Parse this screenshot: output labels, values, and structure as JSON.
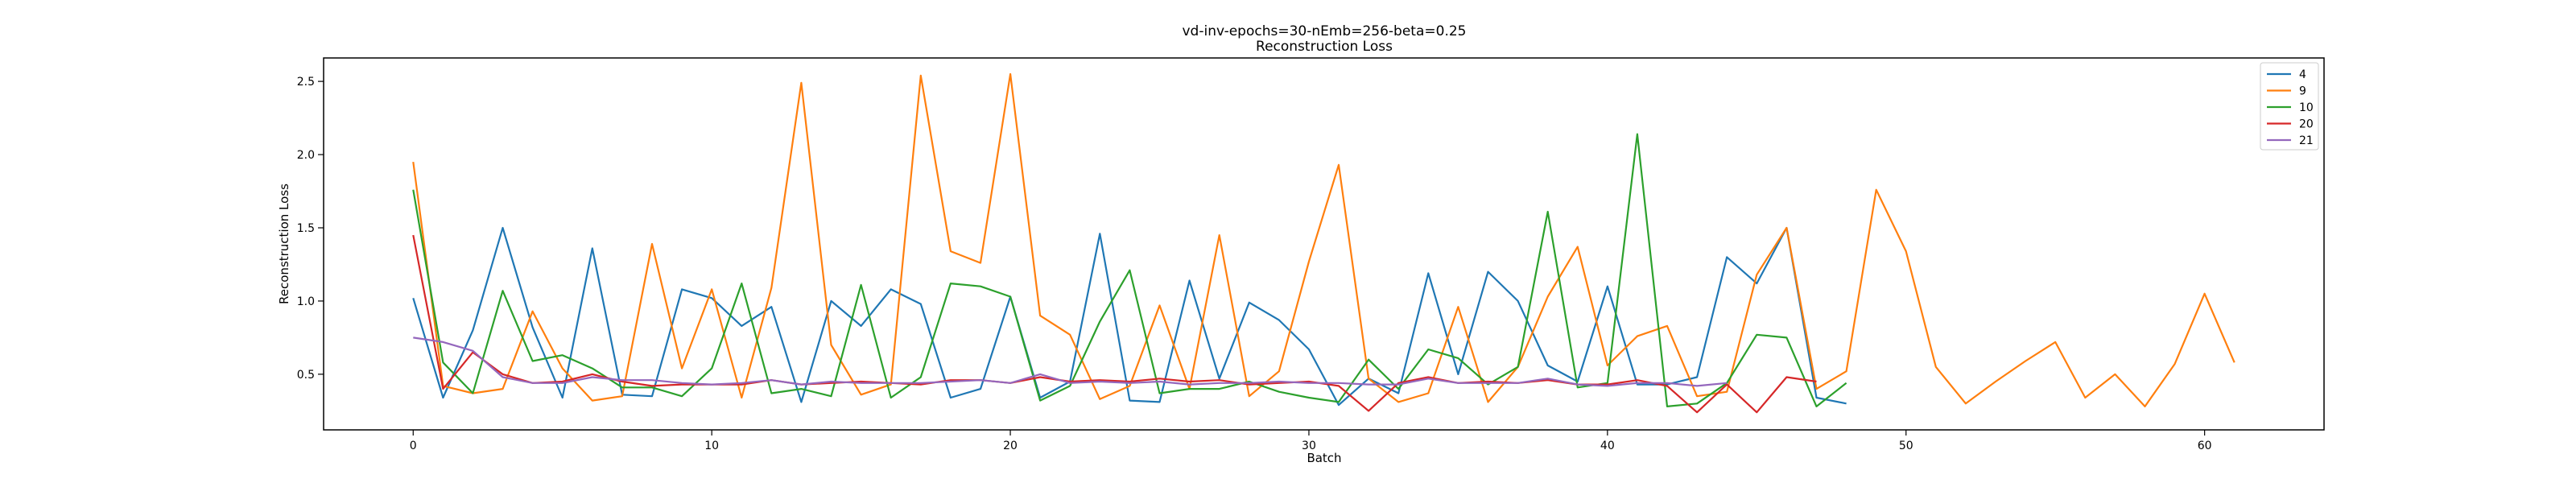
{
  "chart_data": {
    "type": "line",
    "title": "vd-inv-epochs=30-nEmb=256-beta=0.25",
    "subtitle": "Reconstruction Loss",
    "xlabel": "Batch",
    "ylabel": "Reconstruction Loss",
    "xlim": [
      -3,
      64
    ],
    "ylim": [
      0.12,
      2.66
    ],
    "xticks": [
      0,
      10,
      20,
      30,
      40,
      50,
      60
    ],
    "yticks": [
      0.5,
      1.0,
      1.5,
      2.0,
      2.5
    ],
    "ytick_labels": [
      "0.5",
      "1.0",
      "1.5",
      "2.0",
      "2.5"
    ],
    "legend_position": "top-right",
    "series": [
      {
        "name": "4",
        "color": "#1f77b4",
        "values": [
          1.02,
          0.34,
          0.8,
          1.5,
          0.82,
          0.34,
          1.36,
          0.36,
          0.35,
          1.08,
          1.02,
          0.83,
          0.96,
          0.31,
          1.0,
          0.83,
          1.08,
          0.98,
          0.34,
          0.4,
          1.03,
          0.34,
          0.45,
          1.46,
          0.32,
          0.31,
          1.14,
          0.47,
          0.99,
          0.87,
          0.67,
          0.29,
          0.47,
          0.37,
          1.19,
          0.5,
          1.2,
          1.0,
          0.56,
          0.45,
          1.1,
          0.43,
          0.43,
          0.48,
          1.3,
          1.12,
          1.5,
          0.34,
          0.3
        ]
      },
      {
        "name": "9",
        "color": "#ff7f0e",
        "values": [
          1.95,
          0.42,
          0.37,
          0.4,
          0.93,
          0.54,
          0.32,
          0.35,
          1.39,
          0.54,
          1.08,
          0.34,
          1.09,
          2.49,
          0.7,
          0.36,
          0.43,
          2.54,
          1.34,
          1.26,
          2.55,
          0.9,
          0.77,
          0.33,
          0.42,
          0.97,
          0.4,
          1.45,
          0.35,
          0.52,
          1.27,
          1.93,
          0.47,
          0.31,
          0.37,
          0.96,
          0.31,
          0.55,
          1.03,
          1.37,
          0.56,
          0.76,
          0.83,
          0.35,
          0.38,
          1.18,
          1.5,
          0.4,
          0.52,
          1.76,
          1.34,
          0.55,
          0.3,
          0.45,
          0.59,
          0.72,
          0.34,
          0.5,
          0.28,
          0.57,
          1.05,
          0.58
        ]
      },
      {
        "name": "10",
        "color": "#2ca02c",
        "values": [
          1.76,
          0.58,
          0.37,
          1.07,
          0.59,
          0.63,
          0.54,
          0.41,
          0.41,
          0.35,
          0.54,
          1.12,
          0.37,
          0.4,
          0.35,
          1.11,
          0.34,
          0.48,
          1.12,
          1.1,
          1.03,
          0.32,
          0.42,
          0.86,
          1.21,
          0.37,
          0.4,
          0.4,
          0.45,
          0.38,
          0.34,
          0.31,
          0.6,
          0.4,
          0.67,
          0.61,
          0.43,
          0.55,
          1.61,
          0.41,
          0.44,
          2.14,
          0.28,
          0.3,
          0.44,
          0.77,
          0.75,
          0.28,
          0.44
        ]
      },
      {
        "name": "20",
        "color": "#d62728",
        "values": [
          1.45,
          0.4,
          0.65,
          0.5,
          0.44,
          0.45,
          0.5,
          0.45,
          0.42,
          0.43,
          0.43,
          0.43,
          0.46,
          0.43,
          0.44,
          0.45,
          0.44,
          0.43,
          0.46,
          0.46,
          0.44,
          0.48,
          0.45,
          0.46,
          0.45,
          0.47,
          0.45,
          0.46,
          0.43,
          0.44,
          0.45,
          0.42,
          0.25,
          0.44,
          0.48,
          0.44,
          0.45,
          0.44,
          0.46,
          0.43,
          0.43,
          0.46,
          0.42,
          0.24,
          0.43,
          0.24,
          0.48,
          0.45
        ]
      },
      {
        "name": "21",
        "color": "#9467bd",
        "values": [
          0.75,
          0.72,
          0.66,
          0.48,
          0.44,
          0.44,
          0.48,
          0.46,
          0.46,
          0.44,
          0.43,
          0.44,
          0.46,
          0.43,
          0.45,
          0.44,
          0.44,
          0.44,
          0.45,
          0.46,
          0.44,
          0.5,
          0.44,
          0.45,
          0.44,
          0.45,
          0.43,
          0.44,
          0.44,
          0.45,
          0.44,
          0.44,
          0.43,
          0.43,
          0.47,
          0.44,
          0.44,
          0.44,
          0.47,
          0.43,
          0.42,
          0.44,
          0.44,
          0.42,
          0.44
        ]
      }
    ]
  }
}
